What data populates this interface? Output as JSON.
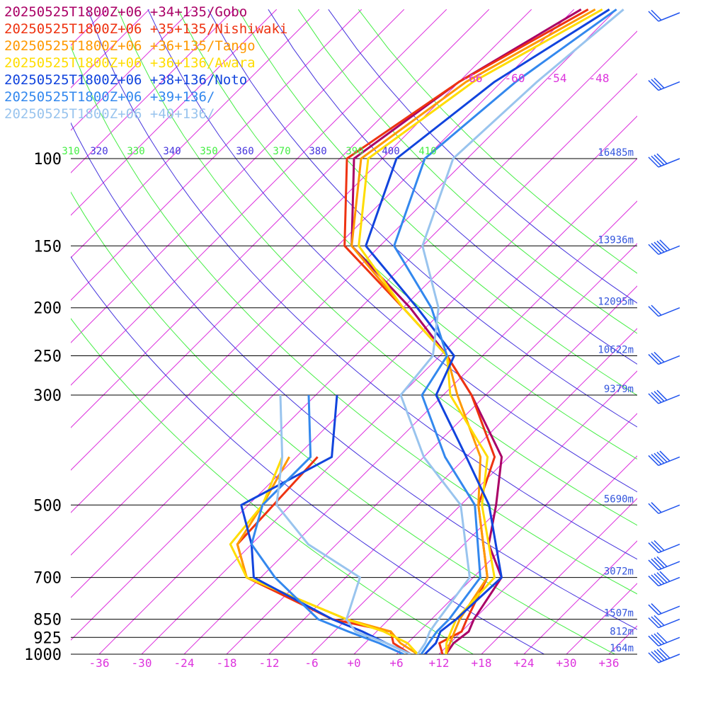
{
  "chart_data": {
    "type": "line",
    "title": "",
    "xlabel": "",
    "ylabel": "",
    "xlim": [
      -40,
      40
    ],
    "pressure_levels": [
      100,
      150,
      200,
      250,
      300,
      500,
      700,
      850,
      925,
      1000
    ],
    "pressure_labels": [
      "100",
      "150",
      "200",
      "250",
      "300",
      "500",
      "700",
      "850",
      "925",
      "1000"
    ],
    "temperature_ticks": [
      "-36",
      "-30",
      "-24",
      "-18",
      "-12",
      "-6",
      "+0",
      "+6",
      "+12",
      "+18",
      "+24",
      "+30",
      "+36"
    ],
    "temperature_tick_values": [
      -36,
      -30,
      -24,
      -18,
      -12,
      -6,
      0,
      6,
      12,
      18,
      24,
      30,
      36
    ],
    "upper_temperature_labels": [
      "-66",
      "-60",
      "-54",
      "-48"
    ],
    "theta_labels": [
      "310",
      "320",
      "330",
      "340",
      "350",
      "360",
      "370",
      "380",
      "390",
      "400",
      "410"
    ],
    "heights": [
      {
        "p": 100,
        "label": "16485m"
      },
      {
        "p": 150,
        "label": "13936m"
      },
      {
        "p": 200,
        "label": "12095m"
      },
      {
        "p": 250,
        "label": "10622m"
      },
      {
        "p": 300,
        "label": "9379m"
      },
      {
        "p": 500,
        "label": "5690m"
      },
      {
        "p": 700,
        "label": "3072m"
      },
      {
        "p": 850,
        "label": "1507m"
      },
      {
        "p": 925,
        "label": "812m"
      },
      {
        "p": 1000,
        "label": "164m"
      }
    ],
    "series": [
      {
        "name": "20250525T1800Z+06 +34+135/Gobo",
        "color": "#aa0066",
        "temperature": [
          [
            1000,
            13
          ],
          [
            950,
            12.5
          ],
          [
            900,
            13
          ],
          [
            850,
            12
          ],
          [
            700,
            10
          ],
          [
            600,
            3.5
          ],
          [
            500,
            -1
          ],
          [
            400,
            -7
          ],
          [
            300,
            -20
          ],
          [
            250,
            -29
          ],
          [
            200,
            -41
          ],
          [
            150,
            -58
          ],
          [
            100,
            -70
          ],
          [
            70,
            -66
          ],
          [
            50,
            -59
          ]
        ]
      },
      {
        "name": "20250525T1800Z+06 +35+135/Nishiwaki",
        "color": "#ee3311",
        "temperature": [
          [
            1000,
            12.5
          ],
          [
            950,
            10.5
          ],
          [
            900,
            12
          ],
          [
            850,
            11
          ],
          [
            700,
            8
          ],
          [
            500,
            -3.5
          ],
          [
            400,
            -8
          ],
          [
            300,
            -20
          ],
          [
            250,
            -29
          ],
          [
            200,
            -42
          ],
          [
            150,
            -59
          ],
          [
            100,
            -71
          ],
          [
            70,
            -66
          ],
          [
            50,
            -58
          ]
        ],
        "dewpoint": [
          [
            1000,
            8
          ],
          [
            950,
            4
          ],
          [
            900,
            2
          ],
          [
            850,
            -8
          ],
          [
            700,
            -26
          ],
          [
            600,
            -32
          ],
          [
            400,
            -33
          ]
        ]
      },
      {
        "name": "20250525T1800Z+06 +36+135/Tango",
        "color": "#ff9900",
        "temperature": [
          [
            1000,
            13
          ],
          [
            950,
            12
          ],
          [
            900,
            11
          ],
          [
            850,
            10
          ],
          [
            700,
            8
          ],
          [
            500,
            -3.5
          ],
          [
            400,
            -10
          ],
          [
            300,
            -22
          ],
          [
            250,
            -29
          ],
          [
            200,
            -42
          ],
          [
            150,
            -58
          ],
          [
            100,
            -69
          ],
          [
            70,
            -65
          ],
          [
            50,
            -57
          ]
        ],
        "dewpoint": [
          [
            1000,
            9
          ],
          [
            950,
            5
          ],
          [
            900,
            2
          ],
          [
            850,
            -6
          ],
          [
            700,
            -26
          ],
          [
            600,
            -32
          ],
          [
            500,
            -34
          ],
          [
            400,
            -37
          ]
        ]
      },
      {
        "name": "20250525T1800Z+06 +36+136/Awara",
        "color": "#ffdd00",
        "temperature": [
          [
            1000,
            13
          ],
          [
            950,
            11.5
          ],
          [
            900,
            10.5
          ],
          [
            850,
            9.5
          ],
          [
            700,
            9
          ],
          [
            500,
            -3
          ],
          [
            400,
            -9
          ],
          [
            300,
            -23
          ],
          [
            250,
            -29
          ],
          [
            200,
            -42
          ],
          [
            150,
            -57
          ],
          [
            100,
            -68
          ],
          [
            70,
            -64
          ],
          [
            50,
            -56
          ]
        ],
        "dewpoint": [
          [
            1000,
            9
          ],
          [
            950,
            6
          ],
          [
            900,
            1
          ],
          [
            850,
            -6
          ],
          [
            700,
            -26
          ],
          [
            600,
            -33
          ],
          [
            500,
            -34
          ],
          [
            400,
            -38
          ]
        ]
      },
      {
        "name": "20250525T1800Z+06 +38+136/Noto",
        "color": "#1144dd",
        "temperature": [
          [
            1000,
            10
          ],
          [
            950,
            10
          ],
          [
            900,
            9
          ],
          [
            850,
            9.5
          ],
          [
            700,
            10
          ],
          [
            500,
            -2
          ],
          [
            400,
            -12
          ],
          [
            300,
            -25
          ],
          [
            250,
            -28
          ],
          [
            200,
            -40
          ],
          [
            150,
            -56
          ],
          [
            100,
            -64
          ],
          [
            70,
            -61
          ],
          [
            50,
            -55
          ]
        ],
        "dewpoint": [
          [
            1000,
            8
          ],
          [
            950,
            3
          ],
          [
            900,
            -2
          ],
          [
            850,
            -8
          ],
          [
            700,
            -25
          ],
          [
            600,
            -30
          ],
          [
            500,
            -37
          ],
          [
            400,
            -31
          ],
          [
            300,
            -39
          ]
        ]
      },
      {
        "name": "20250525T1800Z+06 +39+136/",
        "color": "#3388ee",
        "temperature": [
          [
            1000,
            9.5
          ],
          [
            950,
            9
          ],
          [
            900,
            8.5
          ],
          [
            850,
            8.5
          ],
          [
            700,
            7
          ],
          [
            500,
            -4
          ],
          [
            400,
            -15
          ],
          [
            300,
            -27
          ],
          [
            250,
            -29
          ],
          [
            200,
            -38
          ],
          [
            150,
            -52
          ],
          [
            100,
            -60
          ],
          [
            70,
            -58
          ],
          [
            50,
            -54
          ]
        ],
        "dewpoint": [
          [
            1000,
            7
          ],
          [
            950,
            2
          ],
          [
            900,
            -4
          ],
          [
            850,
            -10
          ],
          [
            700,
            -22
          ],
          [
            600,
            -30
          ],
          [
            500,
            -34
          ],
          [
            400,
            -34
          ],
          [
            300,
            -43
          ]
        ]
      },
      {
        "name": "20250525T1800Z+06 +40+136/",
        "color": "#99c4ee",
        "temperature": [
          [
            1000,
            9
          ],
          [
            950,
            8.5
          ],
          [
            900,
            7.5
          ],
          [
            850,
            7
          ],
          [
            700,
            5.5
          ],
          [
            500,
            -6
          ],
          [
            400,
            -18
          ],
          [
            300,
            -30
          ],
          [
            250,
            -31
          ],
          [
            200,
            -37
          ],
          [
            150,
            -48
          ],
          [
            100,
            -56
          ],
          [
            70,
            -55
          ],
          [
            50,
            -53
          ]
        ],
        "dewpoint": [
          [
            1000,
            8
          ],
          [
            950,
            3
          ],
          [
            900,
            -3
          ],
          [
            850,
            -6
          ],
          [
            700,
            -10
          ],
          [
            600,
            -22
          ],
          [
            500,
            -32
          ],
          [
            400,
            -38
          ],
          [
            300,
            -47
          ]
        ]
      }
    ],
    "wind_levels": [
      50,
      70,
      100,
      150,
      200,
      250,
      300,
      400,
      500,
      600,
      650,
      700,
      800,
      850,
      925,
      1000
    ]
  }
}
